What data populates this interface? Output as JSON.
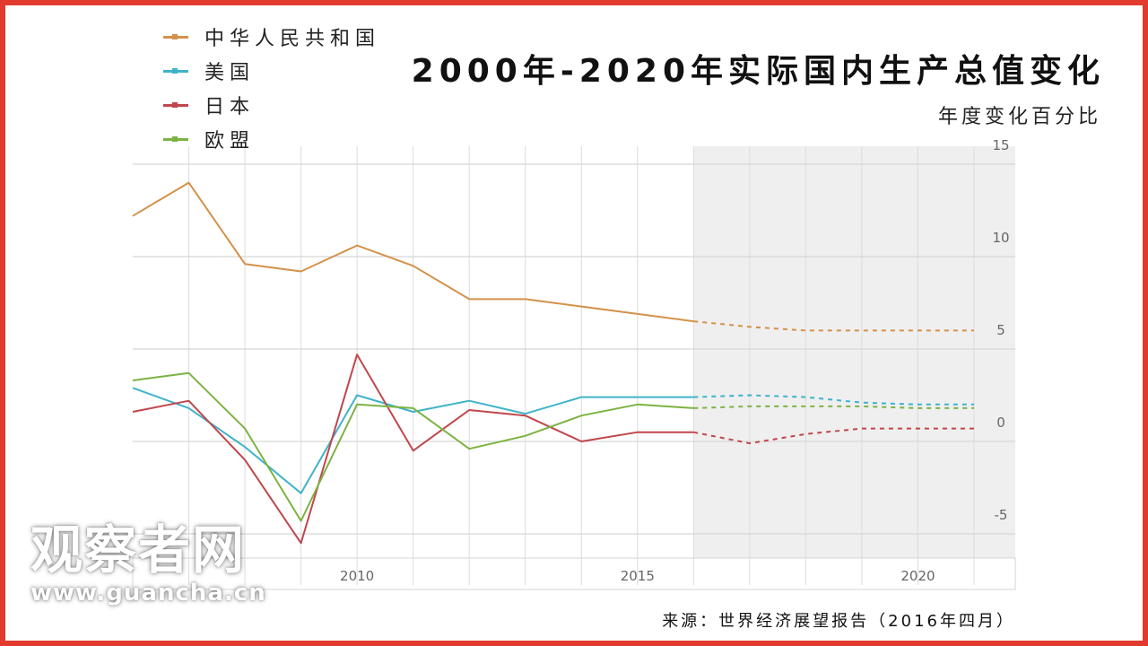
{
  "title": "2000年-2020年实际国内生产总值变化",
  "subtitle": "年度变化百分比",
  "source": "来源：世界经济展望报告（2016年四月）",
  "watermark": {
    "name": "观察者网",
    "url": "www.guancha.cn"
  },
  "colors": {
    "frame": "#e23a2e",
    "forecast_band": "#efefef"
  },
  "legend": [
    {
      "label": "中华人民共和国",
      "color": "#d4914a"
    },
    {
      "label": "美国",
      "color": "#3fb3c9"
    },
    {
      "label": "日本",
      "color": "#c0474d"
    },
    {
      "label": "欧盟",
      "color": "#7cb342"
    }
  ],
  "chart_data": {
    "type": "line",
    "title": "2000年-2020年实际国内生产总值变化",
    "subtitle": "年度变化百分比",
    "x": [
      2006,
      2007,
      2008,
      2009,
      2010,
      2011,
      2012,
      2013,
      2014,
      2015,
      2016,
      2017,
      2018,
      2019,
      2020,
      2021
    ],
    "x_ticks": [
      "2010",
      "2015",
      "2020"
    ],
    "y_ticks": [
      "15",
      "10",
      "5",
      "0",
      "-5"
    ],
    "ylim": [
      -6,
      15
    ],
    "grid": true,
    "legend_position": "top-left",
    "forecast_start": 2016,
    "series": [
      {
        "name": "中华人民共和国",
        "color": "#d4914a",
        "values": [
          12.2,
          14.0,
          9.6,
          9.2,
          10.6,
          9.5,
          7.7,
          7.7,
          7.3,
          6.9,
          6.5,
          6.2,
          6.0,
          6.0,
          6.0,
          6.0
        ]
      },
      {
        "name": "美国",
        "color": "#3fb3c9",
        "values": [
          2.9,
          1.8,
          -0.3,
          -2.8,
          2.5,
          1.6,
          2.2,
          1.5,
          2.4,
          2.4,
          2.4,
          2.5,
          2.4,
          2.1,
          2.0,
          2.0
        ]
      },
      {
        "name": "日本",
        "color": "#c0474d",
        "values": [
          1.6,
          2.2,
          -1.0,
          -5.5,
          4.7,
          -0.5,
          1.7,
          1.4,
          0.0,
          0.5,
          0.5,
          -0.1,
          0.4,
          0.7,
          0.7,
          0.7
        ]
      },
      {
        "name": "欧盟",
        "color": "#7cb342",
        "values": [
          3.3,
          3.7,
          0.7,
          -4.3,
          2.0,
          1.8,
          -0.4,
          0.3,
          1.4,
          2.0,
          1.8,
          1.9,
          1.9,
          1.9,
          1.8,
          1.8
        ]
      }
    ]
  }
}
